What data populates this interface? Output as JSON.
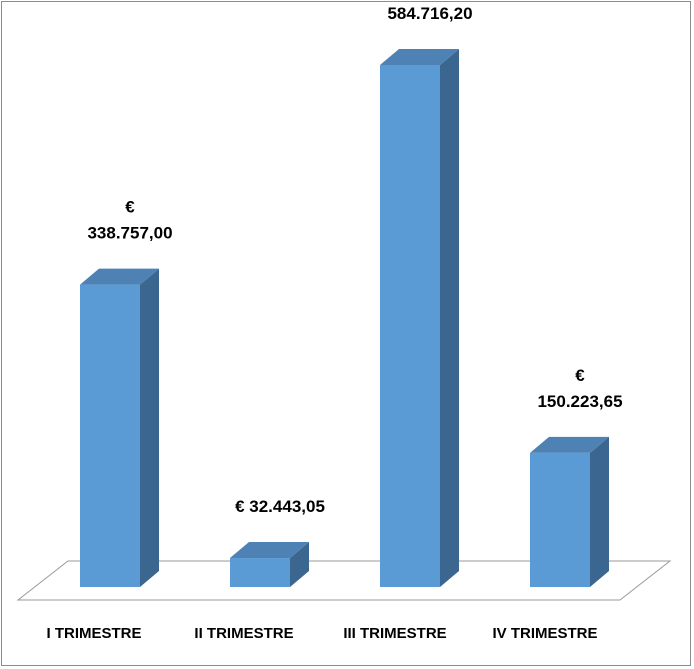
{
  "chart_data": {
    "type": "bar",
    "title": "",
    "xlabel": "",
    "ylabel": "",
    "categories": [
      "I TRIMESTRE",
      "II TRIMESTRE",
      "III TRIMESTRE",
      "IV TRIMESTRE"
    ],
    "values": [
      338757.0,
      32443.05,
      584716.2,
      150223.65
    ],
    "value_labels": [
      [
        "€",
        "338.757,00"
      ],
      [
        "€ 32.443,05"
      ],
      [
        "€",
        "584.716,20"
      ],
      [
        "€",
        "150.223,65"
      ]
    ],
    "ylim": [
      0,
      600000
    ],
    "grid": false,
    "legend": "none",
    "style": "3d-column",
    "colors": {
      "bar_front": "#5b9bd5",
      "bar_side": "#3a6690",
      "bar_top": "#4f82b4",
      "floor": "#ffffff",
      "floor_edge": "#9a9a9a"
    }
  }
}
